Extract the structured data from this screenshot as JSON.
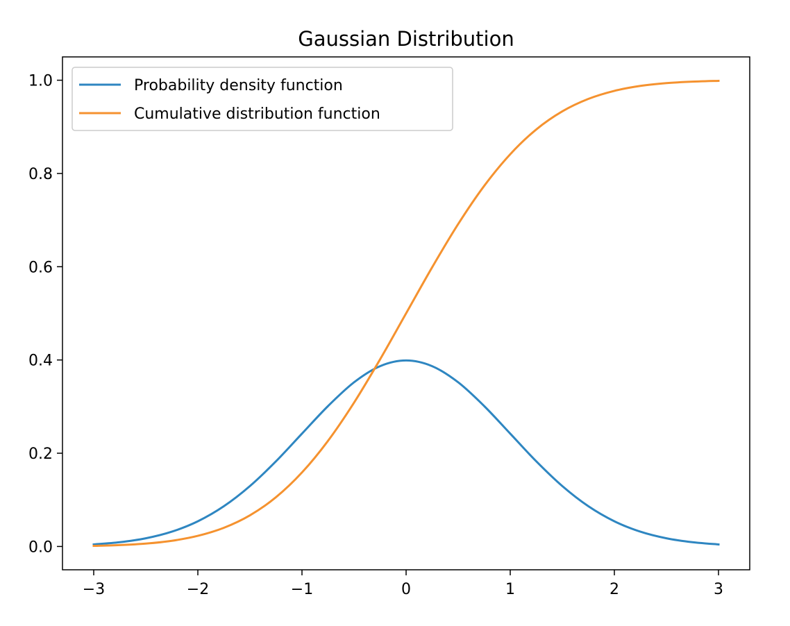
{
  "chart_data": {
    "type": "line",
    "title": "Gaussian Distribution",
    "xlabel": "",
    "ylabel": "",
    "xlim": [
      -3.3,
      3.3
    ],
    "ylim": [
      -0.05,
      1.05
    ],
    "x_ticks": [
      -3,
      -2,
      -1,
      0,
      1,
      2,
      3
    ],
    "x_tick_labels": [
      "−3",
      "−2",
      "−1",
      "0",
      "1",
      "2",
      "3"
    ],
    "y_ticks": [
      0.0,
      0.2,
      0.4,
      0.6,
      0.8,
      1.0
    ],
    "y_tick_labels": [
      "0.0",
      "0.2",
      "0.4",
      "0.6",
      "0.8",
      "1.0"
    ],
    "grid": false,
    "legend_position": "upper-left",
    "x": [
      -3.0,
      -2.75,
      -2.5,
      -2.25,
      -2.0,
      -1.75,
      -1.5,
      -1.25,
      -1.0,
      -0.75,
      -0.5,
      -0.25,
      0.0,
      0.25,
      0.5,
      0.75,
      1.0,
      1.25,
      1.5,
      1.75,
      2.0,
      2.25,
      2.5,
      2.75,
      3.0
    ],
    "series": [
      {
        "name": "Probability density function",
        "color": "#2e86c1",
        "values": [
          0.0044,
          0.0091,
          0.0175,
          0.0317,
          0.054,
          0.0863,
          0.1295,
          0.1826,
          0.242,
          0.3011,
          0.3521,
          0.3867,
          0.3989,
          0.3867,
          0.3521,
          0.3011,
          0.242,
          0.1826,
          0.1295,
          0.0863,
          0.054,
          0.0317,
          0.0175,
          0.0091,
          0.0044
        ]
      },
      {
        "name": "Cumulative distribution function",
        "color": "#f5922f",
        "values": [
          0.0013,
          0.003,
          0.0062,
          0.0122,
          0.0228,
          0.0401,
          0.0668,
          0.1056,
          0.1587,
          0.2266,
          0.3085,
          0.4013,
          0.5,
          0.5987,
          0.6915,
          0.7734,
          0.8413,
          0.8944,
          0.9332,
          0.9599,
          0.9772,
          0.9878,
          0.9938,
          0.997,
          0.9987
        ]
      }
    ]
  }
}
